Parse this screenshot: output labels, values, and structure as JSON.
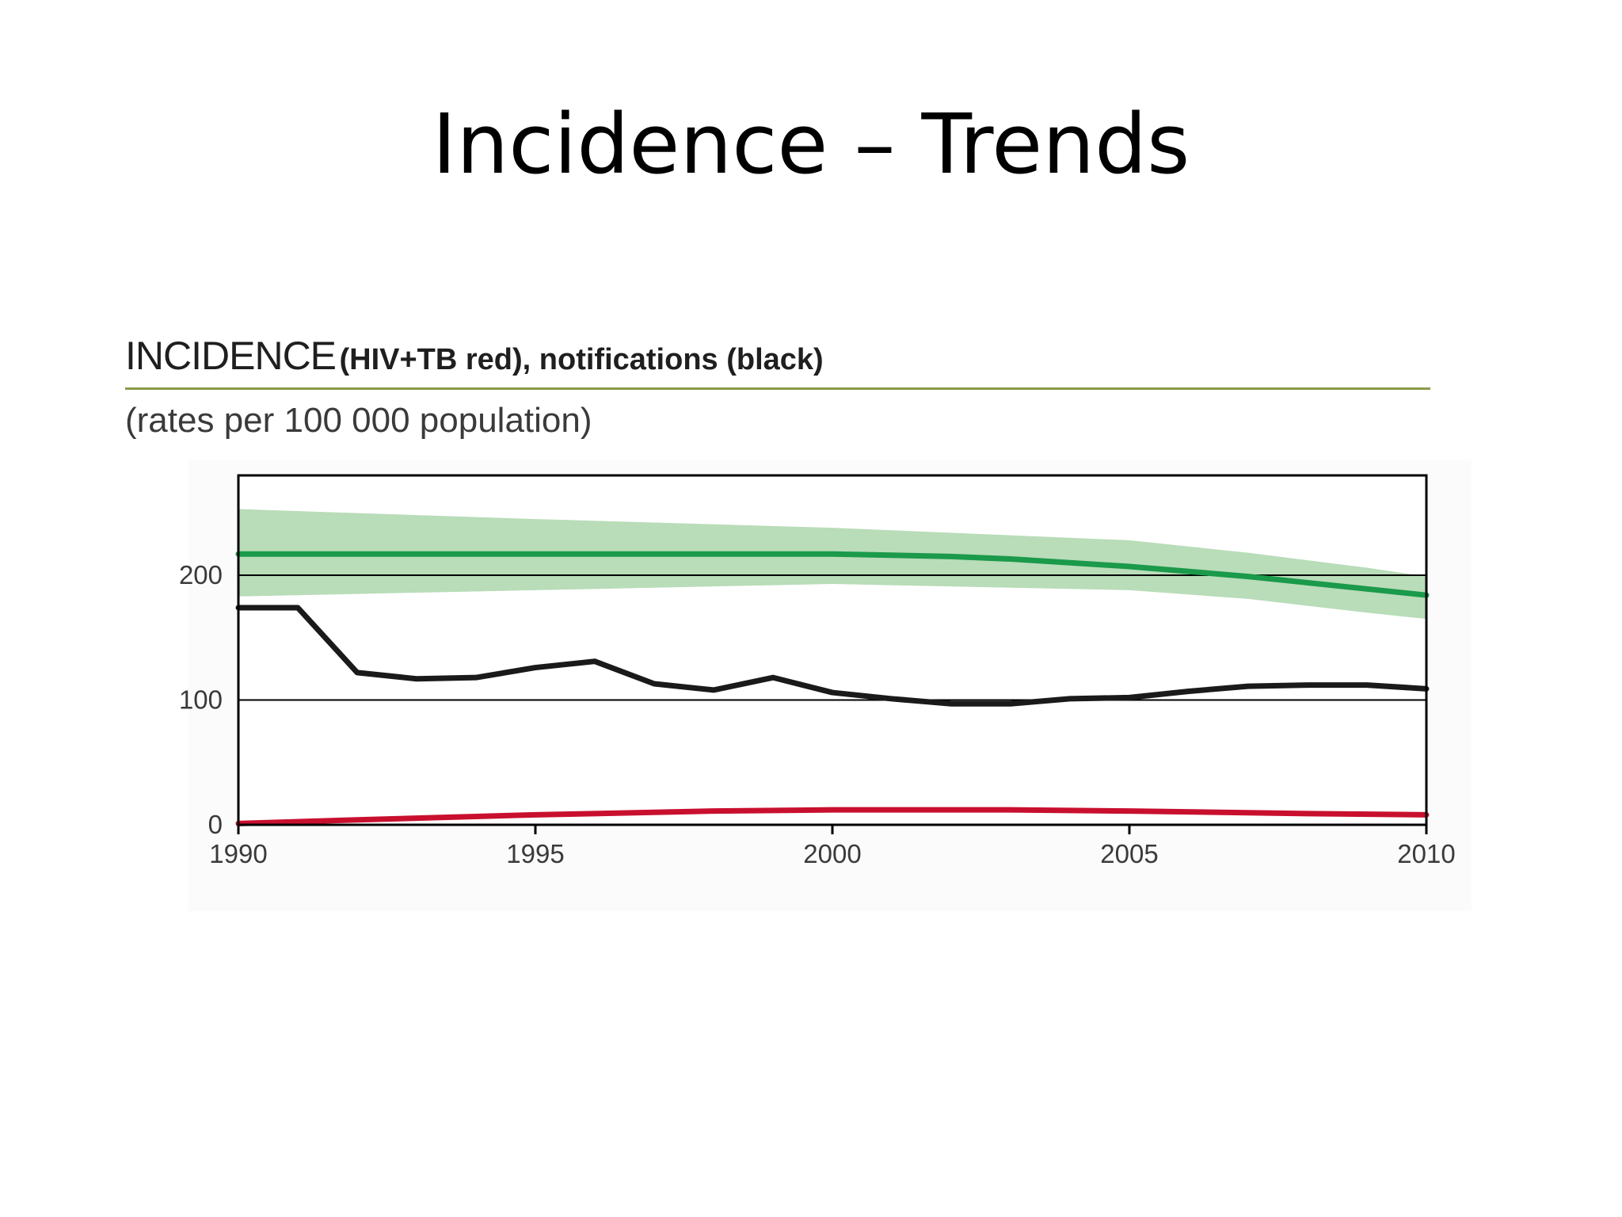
{
  "slide": {
    "title": "Incidence – Trends"
  },
  "chart_data": {
    "type": "line",
    "heading_main": "INCIDENCE",
    "heading_sub": "(HIV+TB red), notifications (black)",
    "subtitle": "(rates per 100 000 population)",
    "xlabel": "",
    "ylabel": "",
    "xlim": [
      1990,
      2010
    ],
    "ylim": [
      0,
      280
    ],
    "x_ticks": [
      1990,
      1995,
      2000,
      2005,
      2010
    ],
    "y_ticks": [
      0,
      100,
      200
    ],
    "grid_y": [
      100,
      200
    ],
    "colors": {
      "band": "#b9dcb9",
      "incidence": "#1a9a4a",
      "notifications": "#1a1a1a",
      "hiv_tb": "#c8102e",
      "frame": "#000000"
    },
    "band": {
      "x": [
        1990,
        1995,
        2000,
        2005,
        2007,
        2009,
        2010
      ],
      "upper": [
        253,
        245,
        238,
        228,
        218,
        206,
        199
      ],
      "lower": [
        183,
        188,
        193,
        188,
        181,
        170,
        165
      ]
    },
    "series": [
      {
        "key": "incidence",
        "x": [
          1990,
          1995,
          2000,
          2001,
          2002,
          2003,
          2004,
          2005,
          2006,
          2007,
          2008,
          2009,
          2010
        ],
        "values": [
          217,
          217,
          217,
          216,
          215,
          213,
          210,
          207,
          203,
          199,
          194,
          189,
          184
        ]
      },
      {
        "key": "notifications",
        "x": [
          1990,
          1991,
          1992,
          1993,
          1994,
          1995,
          1996,
          1997,
          1998,
          1999,
          2000,
          2001,
          2002,
          2003,
          2004,
          2005,
          2006,
          2007,
          2008,
          2009,
          2010
        ],
        "values": [
          174,
          174,
          122,
          117,
          118,
          126,
          131,
          113,
          108,
          118,
          106,
          101,
          97,
          97,
          101,
          102,
          107,
          111,
          112,
          112,
          109
        ]
      },
      {
        "key": "hiv_tb",
        "x": [
          1990,
          1992,
          1995,
          1998,
          2000,
          2003,
          2005,
          2008,
          2010
        ],
        "values": [
          1,
          4,
          8,
          11,
          12,
          12,
          11,
          9,
          8
        ]
      }
    ]
  }
}
